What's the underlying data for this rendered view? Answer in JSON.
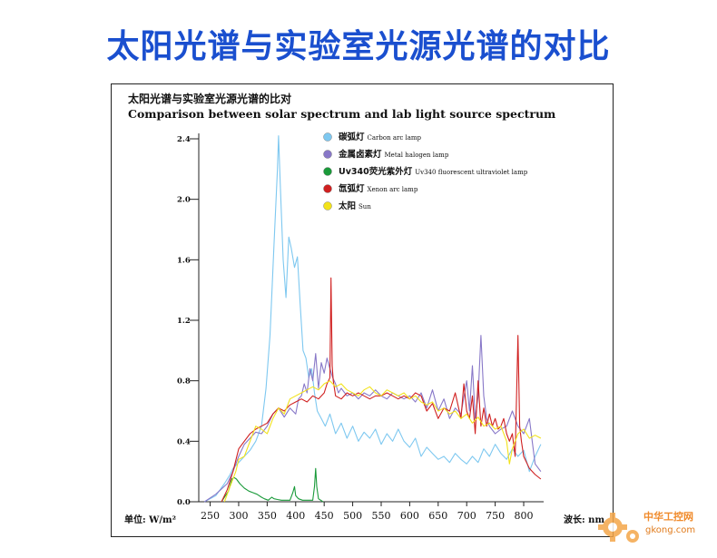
{
  "slide_title": "太阳光谱与实验室光源光谱的对比",
  "watermark": {
    "brand": "中华工控网",
    "site": "gkong.com"
  },
  "chart_data": {
    "type": "line",
    "title": "太阳光谱与实验室光源光谱的比对",
    "subtitle": "Comparison between solar spectrum and lab light source spectrum",
    "ylabel": "单位: W/m²",
    "xlabel": "波长: nm",
    "xlim": [
      230,
      835
    ],
    "ylim": [
      0,
      2.4
    ],
    "xticks": [
      250,
      300,
      350,
      400,
      450,
      500,
      550,
      600,
      650,
      700,
      750,
      800
    ],
    "yticks": [
      "0.0",
      "0.4",
      "0.8",
      "1.2",
      "1.6",
      "2.0",
      "2.4"
    ],
    "legend_position": "top-left",
    "series": [
      {
        "name": "碳弧灯 Carbon arc lamp",
        "color": "#7ec8f0",
        "points": [
          [
            240,
            0
          ],
          [
            260,
            0.04
          ],
          [
            275,
            0.12
          ],
          [
            285,
            0.18
          ],
          [
            290,
            0.22
          ],
          [
            300,
            0.26
          ],
          [
            310,
            0.3
          ],
          [
            320,
            0.34
          ],
          [
            330,
            0.4
          ],
          [
            340,
            0.5
          ],
          [
            348,
            0.75
          ],
          [
            355,
            1.1
          ],
          [
            362,
            1.7
          ],
          [
            368,
            2.2
          ],
          [
            370,
            2.42
          ],
          [
            373,
            2.1
          ],
          [
            378,
            1.6
          ],
          [
            383,
            1.35
          ],
          [
            388,
            1.75
          ],
          [
            392,
            1.68
          ],
          [
            398,
            1.55
          ],
          [
            403,
            1.62
          ],
          [
            408,
            1.3
          ],
          [
            413,
            1.0
          ],
          [
            418,
            0.95
          ],
          [
            423,
            0.82
          ],
          [
            428,
            0.88
          ],
          [
            433,
            0.72
          ],
          [
            438,
            0.6
          ],
          [
            445,
            0.55
          ],
          [
            452,
            0.5
          ],
          [
            460,
            0.58
          ],
          [
            470,
            0.45
          ],
          [
            480,
            0.52
          ],
          [
            490,
            0.42
          ],
          [
            500,
            0.5
          ],
          [
            510,
            0.4
          ],
          [
            520,
            0.46
          ],
          [
            530,
            0.42
          ],
          [
            540,
            0.48
          ],
          [
            550,
            0.38
          ],
          [
            560,
            0.45
          ],
          [
            570,
            0.4
          ],
          [
            580,
            0.48
          ],
          [
            590,
            0.4
          ],
          [
            600,
            0.36
          ],
          [
            610,
            0.42
          ],
          [
            620,
            0.3
          ],
          [
            630,
            0.36
          ],
          [
            640,
            0.32
          ],
          [
            650,
            0.28
          ],
          [
            660,
            0.3
          ],
          [
            670,
            0.26
          ],
          [
            680,
            0.32
          ],
          [
            690,
            0.28
          ],
          [
            700,
            0.25
          ],
          [
            710,
            0.3
          ],
          [
            720,
            0.26
          ],
          [
            730,
            0.35
          ],
          [
            740,
            0.3
          ],
          [
            750,
            0.38
          ],
          [
            760,
            0.32
          ],
          [
            770,
            0.28
          ],
          [
            780,
            0.35
          ],
          [
            790,
            0.3
          ],
          [
            800,
            0.34
          ],
          [
            810,
            0.2
          ],
          [
            820,
            0.3
          ],
          [
            830,
            0.38
          ]
        ]
      },
      {
        "name": "金属卤素灯 Metal halogen lamp",
        "color": "#8878c8",
        "points": [
          [
            240,
            0
          ],
          [
            260,
            0.05
          ],
          [
            280,
            0.12
          ],
          [
            290,
            0.2
          ],
          [
            300,
            0.3
          ],
          [
            310,
            0.38
          ],
          [
            320,
            0.42
          ],
          [
            330,
            0.46
          ],
          [
            340,
            0.45
          ],
          [
            350,
            0.5
          ],
          [
            360,
            0.58
          ],
          [
            370,
            0.62
          ],
          [
            380,
            0.56
          ],
          [
            390,
            0.62
          ],
          [
            400,
            0.58
          ],
          [
            405,
            0.68
          ],
          [
            410,
            0.7
          ],
          [
            415,
            0.78
          ],
          [
            420,
            0.72
          ],
          [
            425,
            0.88
          ],
          [
            430,
            0.8
          ],
          [
            435,
            0.98
          ],
          [
            440,
            0.75
          ],
          [
            445,
            0.92
          ],
          [
            450,
            0.85
          ],
          [
            455,
            0.95
          ],
          [
            460,
            0.88
          ],
          [
            465,
            0.82
          ],
          [
            470,
            0.78
          ],
          [
            475,
            0.72
          ],
          [
            480,
            0.75
          ],
          [
            490,
            0.7
          ],
          [
            500,
            0.72
          ],
          [
            510,
            0.68
          ],
          [
            520,
            0.72
          ],
          [
            530,
            0.7
          ],
          [
            540,
            0.74
          ],
          [
            550,
            0.7
          ],
          [
            560,
            0.68
          ],
          [
            570,
            0.72
          ],
          [
            580,
            0.7
          ],
          [
            590,
            0.68
          ],
          [
            600,
            0.7
          ],
          [
            610,
            0.66
          ],
          [
            620,
            0.72
          ],
          [
            630,
            0.62
          ],
          [
            640,
            0.74
          ],
          [
            650,
            0.6
          ],
          [
            660,
            0.68
          ],
          [
            670,
            0.55
          ],
          [
            680,
            0.62
          ],
          [
            690,
            0.58
          ],
          [
            700,
            0.8
          ],
          [
            705,
            0.6
          ],
          [
            710,
            0.9
          ],
          [
            715,
            0.55
          ],
          [
            720,
            0.7
          ],
          [
            725,
            1.1
          ],
          [
            730,
            0.7
          ],
          [
            735,
            0.55
          ],
          [
            740,
            0.5
          ],
          [
            750,
            0.45
          ],
          [
            760,
            0.48
          ],
          [
            770,
            0.5
          ],
          [
            780,
            0.6
          ],
          [
            790,
            0.5
          ],
          [
            800,
            0.45
          ],
          [
            810,
            0.55
          ],
          [
            815,
            0.4
          ],
          [
            820,
            0.25
          ],
          [
            830,
            0.2
          ]
        ]
      },
      {
        "name": "Uv340荧光紫外灯 Uv340 fluorescent ultraviolet lamp",
        "color": "#1a9a3a",
        "points": [
          [
            270,
            0
          ],
          [
            275,
            0.03
          ],
          [
            282,
            0.07
          ],
          [
            288,
            0.15
          ],
          [
            292,
            0.16
          ],
          [
            296,
            0.15
          ],
          [
            302,
            0.12
          ],
          [
            310,
            0.09
          ],
          [
            318,
            0.07
          ],
          [
            325,
            0.06
          ],
          [
            332,
            0.05
          ],
          [
            340,
            0.03
          ],
          [
            345,
            0.02
          ],
          [
            352,
            0.01
          ],
          [
            358,
            0.03
          ],
          [
            362,
            0.02
          ],
          [
            368,
            0.015
          ],
          [
            375,
            0.01
          ],
          [
            382,
            0.01
          ],
          [
            390,
            0.01
          ],
          [
            395,
            0.06
          ],
          [
            398,
            0.1
          ],
          [
            400,
            0.04
          ],
          [
            405,
            0.02
          ],
          [
            412,
            0.01
          ],
          [
            420,
            0.01
          ],
          [
            430,
            0.01
          ],
          [
            433,
            0.1
          ],
          [
            435,
            0.22
          ],
          [
            437,
            0.1
          ],
          [
            440,
            0.02
          ],
          [
            448,
            0
          ]
        ]
      },
      {
        "name": "氙弧灯 Xenon arc lamp",
        "color": "#d02020",
        "points": [
          [
            270,
            0
          ],
          [
            280,
            0.08
          ],
          [
            290,
            0.2
          ],
          [
            300,
            0.35
          ],
          [
            310,
            0.4
          ],
          [
            320,
            0.45
          ],
          [
            330,
            0.48
          ],
          [
            340,
            0.5
          ],
          [
            350,
            0.52
          ],
          [
            360,
            0.58
          ],
          [
            370,
            0.62
          ],
          [
            380,
            0.6
          ],
          [
            390,
            0.64
          ],
          [
            400,
            0.66
          ],
          [
            410,
            0.68
          ],
          [
            420,
            0.66
          ],
          [
            430,
            0.7
          ],
          [
            440,
            0.68
          ],
          [
            450,
            0.72
          ],
          [
            455,
            0.78
          ],
          [
            460,
            0.82
          ],
          [
            462,
            1.48
          ],
          [
            464,
            0.9
          ],
          [
            466,
            0.8
          ],
          [
            470,
            0.7
          ],
          [
            480,
            0.68
          ],
          [
            490,
            0.72
          ],
          [
            500,
            0.7
          ],
          [
            510,
            0.72
          ],
          [
            520,
            0.7
          ],
          [
            530,
            0.68
          ],
          [
            540,
            0.7
          ],
          [
            550,
            0.7
          ],
          [
            560,
            0.72
          ],
          [
            570,
            0.7
          ],
          [
            580,
            0.68
          ],
          [
            590,
            0.7
          ],
          [
            600,
            0.68
          ],
          [
            610,
            0.72
          ],
          [
            620,
            0.7
          ],
          [
            630,
            0.6
          ],
          [
            640,
            0.65
          ],
          [
            650,
            0.55
          ],
          [
            660,
            0.62
          ],
          [
            670,
            0.6
          ],
          [
            680,
            0.72
          ],
          [
            690,
            0.55
          ],
          [
            695,
            0.78
          ],
          [
            700,
            0.6
          ],
          [
            705,
            0.55
          ],
          [
            710,
            0.7
          ],
          [
            715,
            0.45
          ],
          [
            720,
            0.8
          ],
          [
            725,
            0.5
          ],
          [
            730,
            0.62
          ],
          [
            735,
            0.5
          ],
          [
            740,
            0.58
          ],
          [
            745,
            0.5
          ],
          [
            750,
            0.55
          ],
          [
            755,
            0.48
          ],
          [
            760,
            0.5
          ],
          [
            765,
            0.55
          ],
          [
            770,
            0.45
          ],
          [
            775,
            0.4
          ],
          [
            780,
            0.45
          ],
          [
            785,
            0.3
          ],
          [
            790,
            1.1
          ],
          [
            793,
            0.5
          ],
          [
            796,
            0.4
          ],
          [
            800,
            0.3
          ],
          [
            810,
            0.22
          ],
          [
            820,
            0.18
          ],
          [
            830,
            0.15
          ]
        ]
      },
      {
        "name": "太阳 Sun",
        "color": "#f2e21a",
        "points": [
          [
            275,
            0
          ],
          [
            285,
            0.1
          ],
          [
            295,
            0.2
          ],
          [
            300,
            0.28
          ],
          [
            310,
            0.3
          ],
          [
            320,
            0.4
          ],
          [
            330,
            0.5
          ],
          [
            340,
            0.48
          ],
          [
            350,
            0.45
          ],
          [
            360,
            0.55
          ],
          [
            370,
            0.62
          ],
          [
            380,
            0.58
          ],
          [
            390,
            0.68
          ],
          [
            400,
            0.7
          ],
          [
            410,
            0.72
          ],
          [
            420,
            0.74
          ],
          [
            430,
            0.76
          ],
          [
            440,
            0.74
          ],
          [
            450,
            0.78
          ],
          [
            460,
            0.8
          ],
          [
            470,
            0.76
          ],
          [
            480,
            0.78
          ],
          [
            490,
            0.74
          ],
          [
            500,
            0.72
          ],
          [
            510,
            0.7
          ],
          [
            520,
            0.74
          ],
          [
            530,
            0.76
          ],
          [
            540,
            0.72
          ],
          [
            550,
            0.7
          ],
          [
            560,
            0.74
          ],
          [
            570,
            0.72
          ],
          [
            580,
            0.7
          ],
          [
            590,
            0.72
          ],
          [
            600,
            0.68
          ],
          [
            610,
            0.7
          ],
          [
            620,
            0.66
          ],
          [
            630,
            0.64
          ],
          [
            640,
            0.66
          ],
          [
            650,
            0.6
          ],
          [
            660,
            0.62
          ],
          [
            670,
            0.58
          ],
          [
            680,
            0.6
          ],
          [
            690,
            0.55
          ],
          [
            700,
            0.58
          ],
          [
            710,
            0.52
          ],
          [
            720,
            0.56
          ],
          [
            730,
            0.5
          ],
          [
            740,
            0.52
          ],
          [
            750,
            0.48
          ],
          [
            760,
            0.5
          ],
          [
            770,
            0.4
          ],
          [
            775,
            0.25
          ],
          [
            780,
            0.35
          ],
          [
            790,
            0.45
          ],
          [
            800,
            0.48
          ],
          [
            810,
            0.42
          ],
          [
            820,
            0.44
          ],
          [
            830,
            0.42
          ]
        ]
      }
    ]
  }
}
